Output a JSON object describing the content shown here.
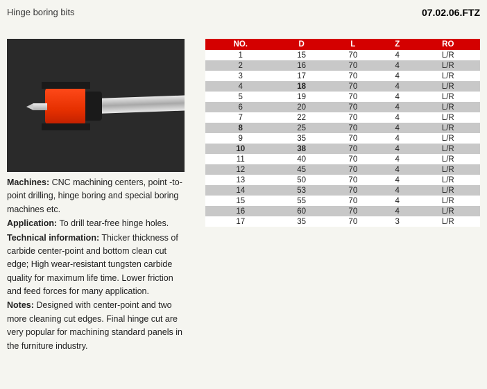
{
  "header": {
    "title": "Hinge boring bits",
    "code": "07.02.06.FTZ"
  },
  "description": {
    "machines_label": "Machines:",
    "machines_text": " CNC machining centers,   point -to-point drilling, hinge boring and special boring machines etc.",
    "application_label": "Application:",
    "application_text": " To drill tear-free hinge holes.",
    "technical_label": "Technical information:",
    "technical_text": " Thicker thickness of carbide center-point and bottom clean cut edge;  High wear-resistant tungsten carbide quality for maximum life time. Lower friction and feed forces for many application.",
    "notes_label": "Notes:",
    "notes_text": " Designed with center-point and two more cleaning cut edges. Final hinge cut are very popular for machining standard panels in the furniture industry."
  },
  "table": {
    "headers": [
      "NO.",
      "D",
      "L",
      "Z",
      "RO"
    ],
    "header_bg": "#d40000",
    "header_fg": "#ffffff",
    "row_odd_bg": "#ffffff",
    "row_even_bg": "#c8c8c8",
    "bold_cells": [
      [
        4,
        2
      ],
      [
        8,
        1
      ],
      [
        10,
        1
      ],
      [
        10,
        2
      ]
    ],
    "rows": [
      [
        "1",
        "15",
        "70",
        "4",
        "L/R"
      ],
      [
        "2",
        "16",
        "70",
        "4",
        "L/R"
      ],
      [
        "3",
        "17",
        "70",
        "4",
        "L/R"
      ],
      [
        "4",
        "18",
        "70",
        "4",
        "L/R"
      ],
      [
        "5",
        "19",
        "70",
        "4",
        "L/R"
      ],
      [
        "6",
        "20",
        "70",
        "4",
        "L/R"
      ],
      [
        "7",
        "22",
        "70",
        "4",
        "L/R"
      ],
      [
        "8",
        "25",
        "70",
        "4",
        "L/R"
      ],
      [
        "9",
        "35",
        "70",
        "4",
        "L/R"
      ],
      [
        "10",
        "38",
        "70",
        "4",
        "L/R"
      ],
      [
        "11",
        "40",
        "70",
        "4",
        "L/R"
      ],
      [
        "12",
        "45",
        "70",
        "4",
        "L/R"
      ],
      [
        "13",
        "50",
        "70",
        "4",
        "L/R"
      ],
      [
        "14",
        "53",
        "70",
        "4",
        "L/R"
      ],
      [
        "15",
        "55",
        "70",
        "4",
        "L/R"
      ],
      [
        "16",
        "60",
        "70",
        "4",
        "L/R"
      ],
      [
        "17",
        "35",
        "70",
        "3",
        "L/R"
      ]
    ]
  },
  "image": {
    "background_color": "#2a2a2a",
    "body_color": "#e63000",
    "shank_color": "#c0c0c0"
  }
}
